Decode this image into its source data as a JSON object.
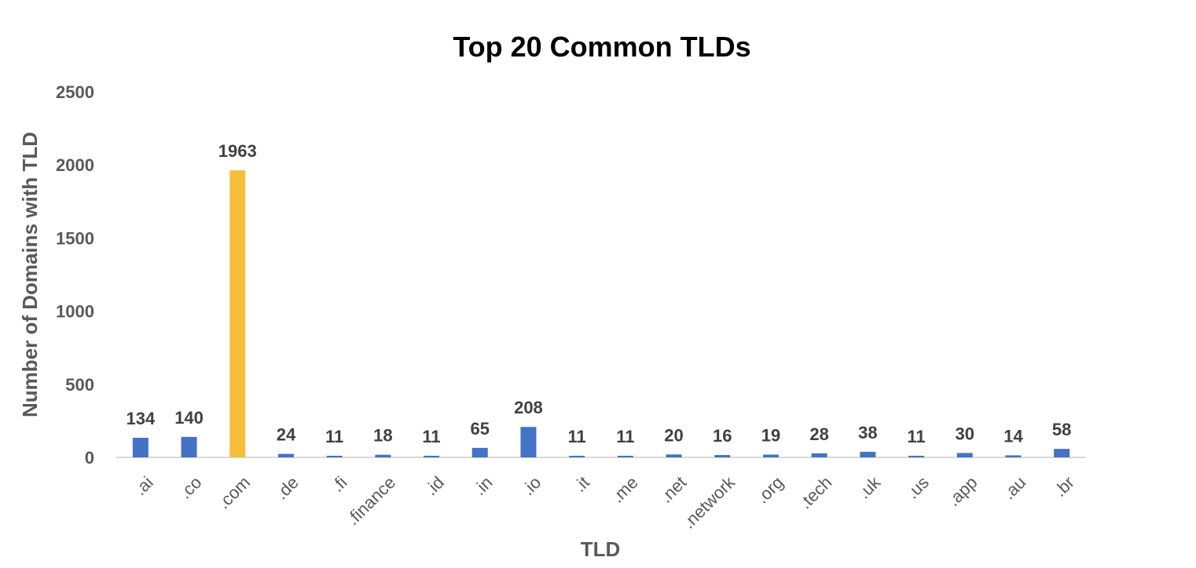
{
  "chart_data": {
    "type": "bar",
    "title": "Top 20 Common TLDs",
    "xlabel": "TLD",
    "ylabel": "Number of Domains with TLD",
    "categories": [
      ".ai",
      ".co",
      ".com",
      ".de",
      ".fi",
      ".finance",
      ".id",
      ".in",
      ".io",
      ".it",
      ".me",
      ".net",
      ".network",
      ".org",
      ".tech",
      ".uk",
      ".us",
      ".app",
      ".au",
      ".br"
    ],
    "values": [
      134,
      140,
      1963,
      24,
      11,
      18,
      11,
      65,
      208,
      11,
      11,
      20,
      16,
      19,
      28,
      38,
      11,
      30,
      14,
      58
    ],
    "ylim": [
      0,
      2500
    ],
    "yticks": [
      0,
      500,
      1000,
      1500,
      2000,
      2500
    ],
    "grid": false,
    "legend": "none",
    "data_labels": true,
    "colors": {
      "default_bar": "#4472C4",
      "highlight_bar": "#F6BE3B",
      "highlight_category": ".com",
      "axis_line": "#D9D9D9"
    }
  }
}
